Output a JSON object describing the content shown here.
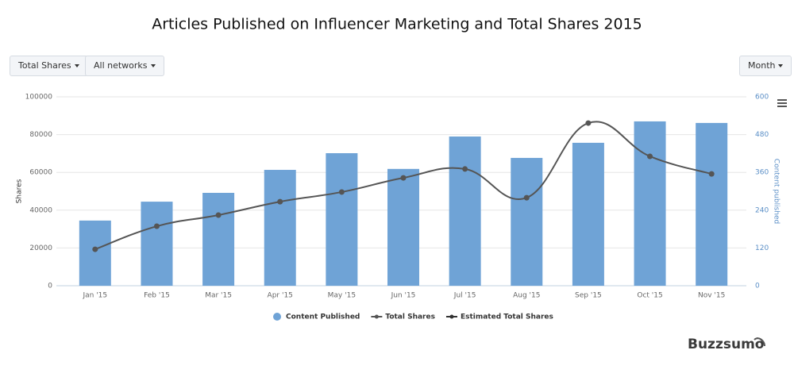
{
  "controls": [
    "Total Shares",
    "All networks",
    "Month"
  ],
  "logo": "Buzzsumo",
  "chart_data": {
    "type": "combo",
    "title": "Articles Published on Influencer Marketing and Total Shares 2015",
    "y_label": "Shares",
    "y2_label": "Content published",
    "categories": [
      "Jan '15",
      "Feb '15",
      "Mar '15",
      "Apr '15",
      "May '15",
      "Jun '15",
      "Jul '15",
      "Aug '15",
      "Sep '15",
      "Oct '15",
      "Nov '15"
    ],
    "series": [
      {
        "name": "Content Published",
        "type": "bar",
        "axis": "y2",
        "color": "#6fa3d6",
        "values": [
          207,
          267,
          295,
          368,
          421,
          371,
          474,
          406,
          454,
          522,
          517
        ]
      },
      {
        "name": "Total Shares",
        "type": "line",
        "color": "#555555",
        "values": [
          19300,
          31500,
          37400,
          44500,
          49600,
          57100,
          61800,
          46600,
          86100,
          68500,
          59200
        ]
      },
      {
        "name": "Estimated Total Shares",
        "type": "line",
        "color": "#333333",
        "values": [
          null,
          null,
          null,
          null,
          null,
          null,
          null,
          null,
          null,
          null,
          null
        ]
      }
    ],
    "ylim": [
      0,
      100000
    ],
    "yticks": [
      0,
      20000,
      40000,
      60000,
      80000,
      100000
    ],
    "y2lim": [
      0,
      600
    ],
    "y2ticks": [
      0,
      120,
      240,
      360,
      480,
      600
    ],
    "grid": true,
    "legend": "bottom"
  }
}
